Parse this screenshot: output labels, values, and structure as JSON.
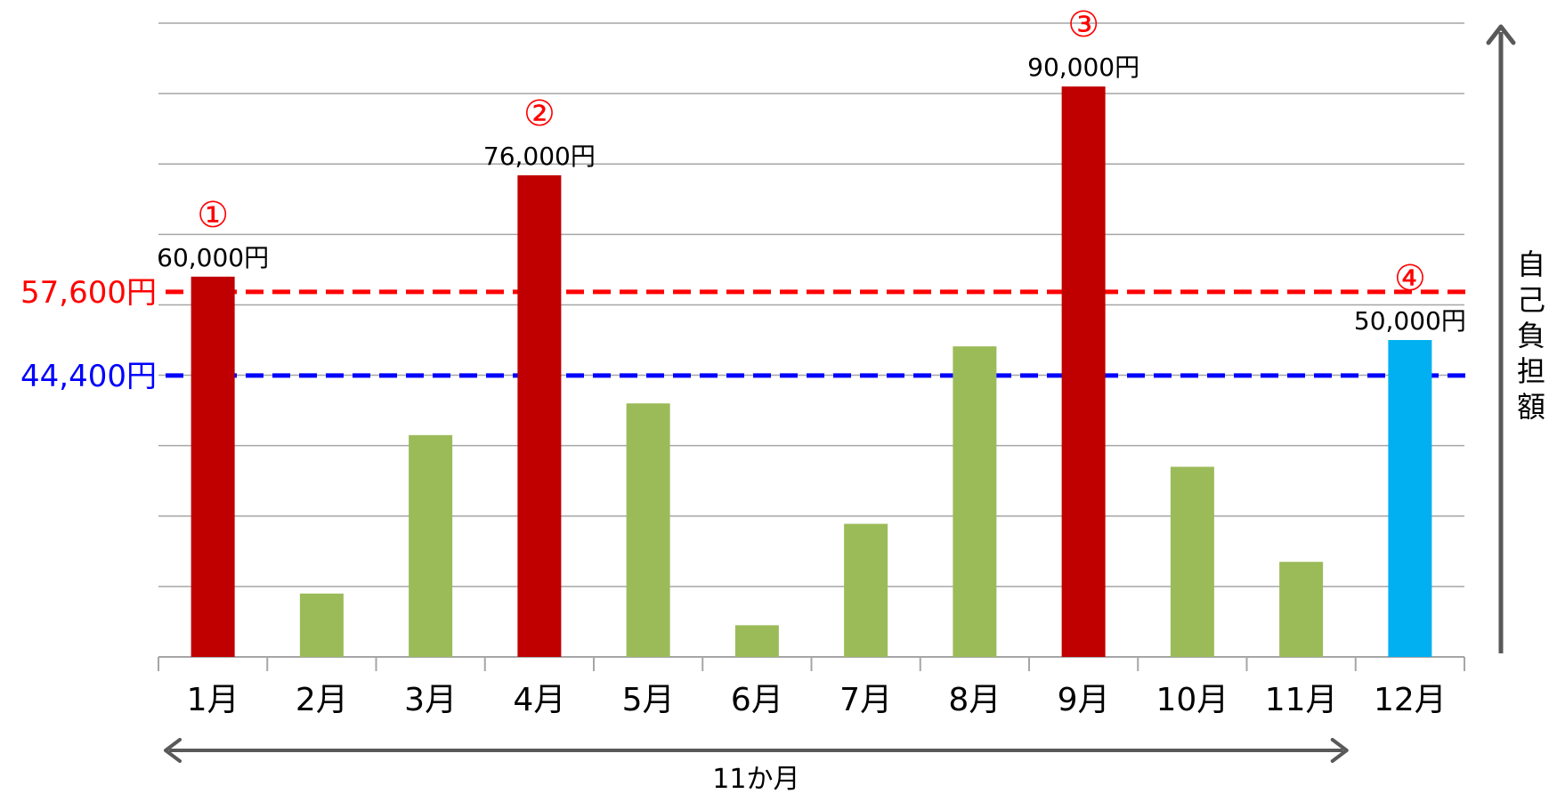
{
  "chart_data": {
    "type": "bar",
    "categories": [
      "1月",
      "2月",
      "3月",
      "4月",
      "5月",
      "6月",
      "7月",
      "8月",
      "9月",
      "10月",
      "11月",
      "12月"
    ],
    "values": [
      60000,
      10000,
      35000,
      76000,
      40000,
      5000,
      21000,
      49000,
      90000,
      30000,
      15000,
      50000
    ],
    "ylim": [
      0,
      100000
    ],
    "grid": true,
    "ylabel": "自己負担額",
    "colors": {
      "high": "#c00000",
      "normal": "#9bbb59",
      "current": "#00b0f0",
      "grid": "#a6a6a6",
      "red_line": "#ff0000",
      "blue_line": "#0000ff",
      "arrow": "#595959"
    },
    "bar_kinds": [
      "high",
      "normal",
      "normal",
      "high",
      "normal",
      "normal",
      "normal",
      "normal",
      "high",
      "normal",
      "normal",
      "current"
    ],
    "value_labels": [
      {
        "index": 0,
        "text": "60,000円"
      },
      {
        "index": 3,
        "text": "76,000円"
      },
      {
        "index": 8,
        "text": "90,000円"
      },
      {
        "index": 11,
        "text": "50,000円"
      }
    ],
    "markers": [
      {
        "index": 0,
        "text": "①",
        "color": "#ff0000"
      },
      {
        "index": 3,
        "text": "②",
        "color": "#ff0000"
      },
      {
        "index": 8,
        "text": "③",
        "color": "#ff0000"
      },
      {
        "index": 11,
        "text": "④",
        "color": "#ff0000"
      }
    ],
    "reference_lines": [
      {
        "value": 57600,
        "label": "57,600円",
        "color": "#ff0000"
      },
      {
        "value": 44400,
        "label": "44,400円",
        "color": "#0000ff"
      }
    ],
    "span": {
      "from_index": 0,
      "to_index": 10,
      "label": "11か月"
    }
  }
}
